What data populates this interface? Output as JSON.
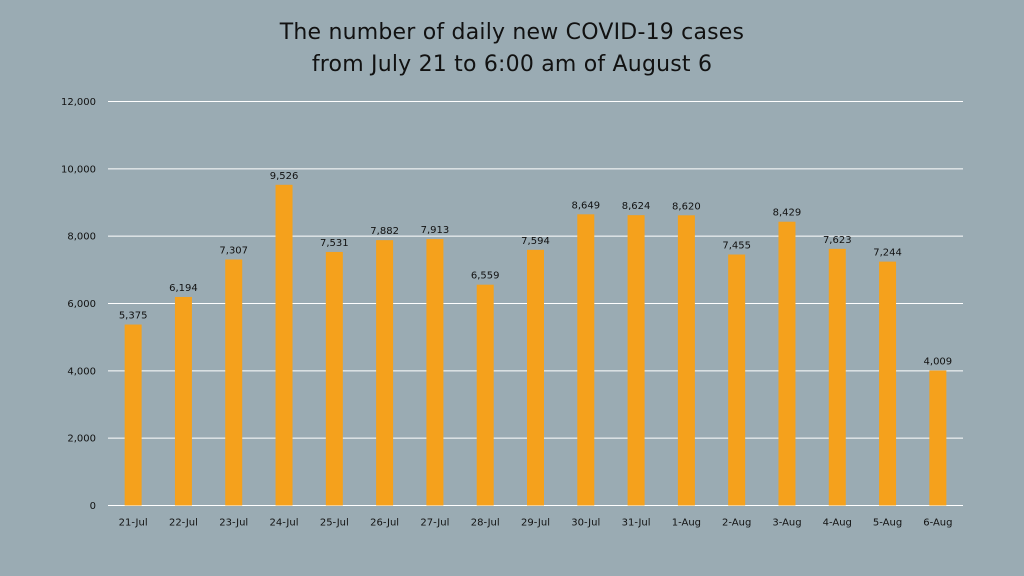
{
  "chart_data": {
    "type": "bar",
    "title_lines": [
      "The number of daily new COVID-19 cases",
      "from July 21 to 6:00 am of August 6"
    ],
    "categories": [
      "21-Jul",
      "22-Jul",
      "23-Jul",
      "24-Jul",
      "25-Jul",
      "26-Jul",
      "27-Jul",
      "28-Jul",
      "29-Jul",
      "30-Jul",
      "31-Jul",
      "1-Aug",
      "2-Aug",
      "3-Aug",
      "4-Aug",
      "5-Aug",
      "6-Aug"
    ],
    "values": [
      5375,
      6194,
      7307,
      9526,
      7531,
      7882,
      7913,
      6559,
      7594,
      8649,
      8624,
      8620,
      7455,
      8429,
      7623,
      7244,
      4009
    ],
    "value_labels": [
      "5,375",
      "6,194",
      "7,307",
      "9,526",
      "7,531",
      "7,882",
      "7,913",
      "6,559",
      "7,594",
      "8,649",
      "8,624",
      "8,620",
      "7,455",
      "8,429",
      "7,623",
      "7,244",
      "4,009"
    ],
    "y_ticks": [
      0,
      2000,
      4000,
      6000,
      8000,
      10000,
      12000
    ],
    "y_tick_labels": [
      "0",
      "2,000",
      "4,000",
      "6,000",
      "8,000",
      "10,000",
      "12,000"
    ],
    "ylim": [
      0,
      12000
    ],
    "xlabel": "",
    "ylabel": "",
    "grid": true,
    "legend": "none",
    "colors": {
      "background": "#9aabb3",
      "bar": "#f5a11c",
      "grid": "#ffffff",
      "text": "#111111"
    }
  }
}
